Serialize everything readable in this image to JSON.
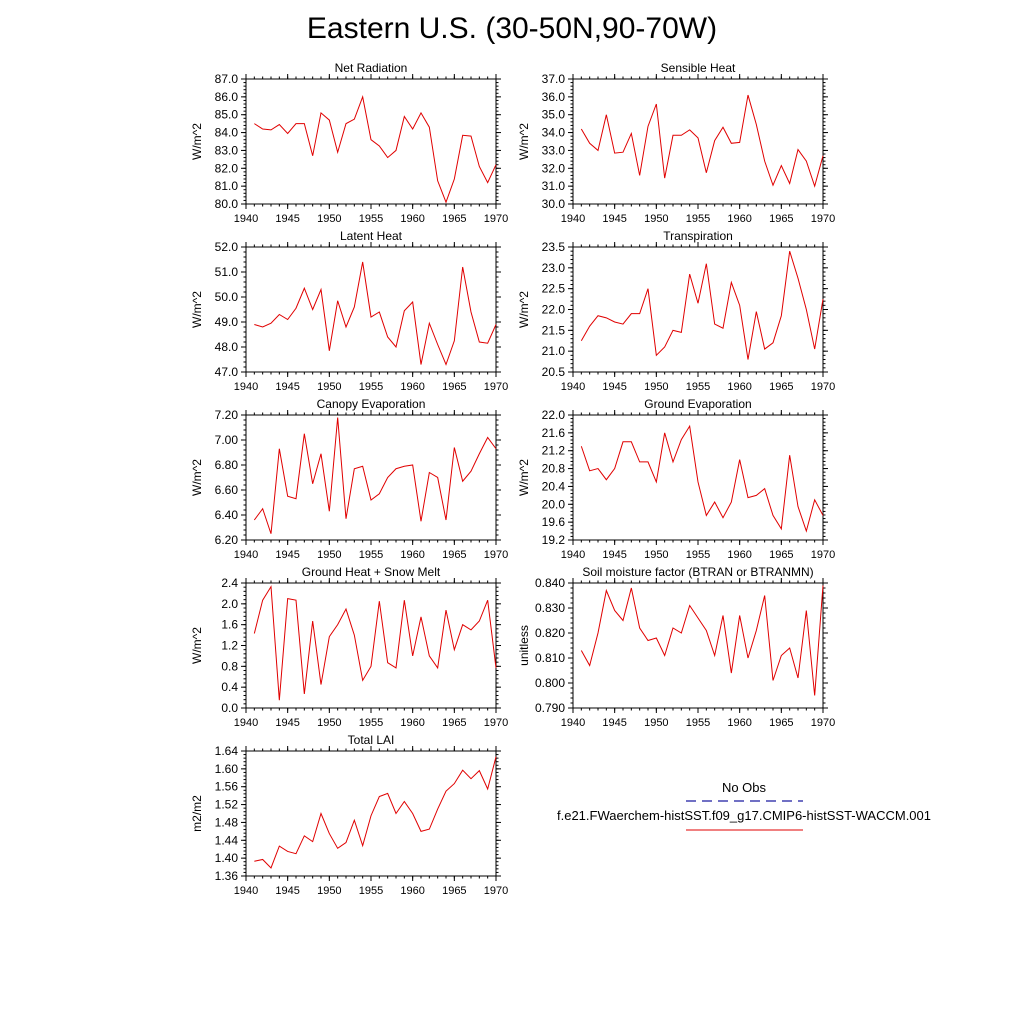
{
  "title": "Eastern U.S. (30-50N,90-70W)",
  "colors": {
    "model_line": "#e00000",
    "obs_line": "#1a1aa0",
    "axis": "#000000"
  },
  "legend": {
    "obs_label": "No Obs",
    "model_label": "f.e21.FWaerchem-histSST.f09_g17.CMIP6-histSST-WACCM.001"
  },
  "chart_data": [
    {
      "type": "line",
      "title": "Net Radiation",
      "ylabel": "W/m^2",
      "xlim": [
        1940,
        1970
      ],
      "ylim": [
        80.0,
        87.0
      ],
      "xticks": [
        1940,
        1945,
        1950,
        1955,
        1960,
        1965,
        1970
      ],
      "yticks": [
        "80.0",
        "81.0",
        "82.0",
        "83.0",
        "84.0",
        "85.0",
        "86.0",
        "87.0"
      ],
      "x": [
        1941,
        1942,
        1943,
        1944,
        1945,
        1946,
        1947,
        1948,
        1949,
        1950,
        1951,
        1952,
        1953,
        1954,
        1955,
        1956,
        1957,
        1958,
        1959,
        1960,
        1961,
        1962,
        1963,
        1964,
        1965,
        1966,
        1967,
        1968,
        1969,
        1970
      ],
      "y": [
        84.5,
        84.2,
        84.15,
        84.45,
        83.95,
        84.5,
        84.5,
        82.7,
        85.1,
        84.7,
        82.9,
        84.5,
        84.75,
        86.0,
        83.6,
        83.25,
        82.6,
        83.0,
        84.9,
        84.2,
        85.1,
        84.3,
        81.3,
        80.1,
        81.4,
        83.85,
        83.8,
        82.1,
        81.2,
        82.2
      ]
    },
    {
      "type": "line",
      "title": "Sensible Heat",
      "ylabel": "W/m^2",
      "xlim": [
        1940,
        1970
      ],
      "ylim": [
        30.0,
        37.0
      ],
      "xticks": [
        1940,
        1945,
        1950,
        1955,
        1960,
        1965,
        1970
      ],
      "yticks": [
        "30.0",
        "31.0",
        "32.0",
        "33.0",
        "34.0",
        "35.0",
        "36.0",
        "37.0"
      ],
      "x": [
        1941,
        1942,
        1943,
        1944,
        1945,
        1946,
        1947,
        1948,
        1949,
        1950,
        1951,
        1952,
        1953,
        1954,
        1955,
        1956,
        1957,
        1958,
        1959,
        1960,
        1961,
        1962,
        1963,
        1964,
        1965,
        1966,
        1967,
        1968,
        1969,
        1970
      ],
      "y": [
        34.2,
        33.4,
        33.0,
        35.0,
        32.85,
        32.9,
        33.95,
        31.6,
        34.35,
        35.6,
        31.45,
        33.85,
        33.85,
        34.15,
        33.7,
        31.75,
        33.55,
        34.3,
        33.4,
        33.45,
        36.1,
        34.45,
        32.4,
        31.05,
        32.15,
        31.15,
        33.05,
        32.4,
        31.0,
        32.7
      ]
    },
    {
      "type": "line",
      "title": "Latent Heat",
      "ylabel": "W/m^2",
      "xlim": [
        1940,
        1970
      ],
      "ylim": [
        47.0,
        52.0
      ],
      "xticks": [
        1940,
        1945,
        1950,
        1955,
        1960,
        1965,
        1970
      ],
      "yticks": [
        "47.0",
        "48.0",
        "49.0",
        "50.0",
        "51.0",
        "52.0"
      ],
      "x": [
        1941,
        1942,
        1943,
        1944,
        1945,
        1946,
        1947,
        1948,
        1949,
        1950,
        1951,
        1952,
        1953,
        1954,
        1955,
        1956,
        1957,
        1958,
        1959,
        1960,
        1961,
        1962,
        1963,
        1964,
        1965,
        1966,
        1967,
        1968,
        1969,
        1970
      ],
      "y": [
        48.9,
        48.8,
        48.95,
        49.3,
        49.1,
        49.55,
        50.35,
        49.5,
        50.3,
        47.85,
        49.85,
        48.8,
        49.6,
        51.4,
        49.2,
        49.4,
        48.4,
        48.0,
        49.45,
        49.8,
        47.3,
        48.95,
        48.1,
        47.3,
        48.25,
        51.2,
        49.4,
        48.2,
        48.15,
        48.9
      ]
    },
    {
      "type": "line",
      "title": "Transpiration",
      "ylabel": "W/m^2",
      "xlim": [
        1940,
        1970
      ],
      "ylim": [
        20.5,
        23.5
      ],
      "xticks": [
        1940,
        1945,
        1950,
        1955,
        1960,
        1965,
        1970
      ],
      "yticks": [
        "20.5",
        "21.0",
        "21.5",
        "22.0",
        "22.5",
        "23.0",
        "23.5"
      ],
      "x": [
        1941,
        1942,
        1943,
        1944,
        1945,
        1946,
        1947,
        1948,
        1949,
        1950,
        1951,
        1952,
        1953,
        1954,
        1955,
        1956,
        1957,
        1958,
        1959,
        1960,
        1961,
        1962,
        1963,
        1964,
        1965,
        1966,
        1967,
        1968,
        1969,
        1970
      ],
      "y": [
        21.25,
        21.6,
        21.85,
        21.8,
        21.7,
        21.65,
        21.9,
        21.9,
        22.5,
        20.9,
        21.1,
        21.5,
        21.45,
        22.85,
        22.15,
        23.1,
        21.65,
        21.55,
        22.65,
        22.1,
        20.8,
        21.95,
        21.05,
        21.2,
        21.85,
        23.4,
        22.75,
        22.0,
        21.05,
        22.25
      ]
    },
    {
      "type": "line",
      "title": "Canopy Evaporation",
      "ylabel": "W/m^2",
      "xlim": [
        1940,
        1970
      ],
      "ylim": [
        6.2,
        7.2
      ],
      "xticks": [
        1940,
        1945,
        1950,
        1955,
        1960,
        1965,
        1970
      ],
      "yticks": [
        "6.20",
        "6.40",
        "6.60",
        "6.80",
        "7.00",
        "7.20"
      ],
      "x": [
        1941,
        1942,
        1943,
        1944,
        1945,
        1946,
        1947,
        1948,
        1949,
        1950,
        1951,
        1952,
        1953,
        1954,
        1955,
        1956,
        1957,
        1958,
        1959,
        1960,
        1961,
        1962,
        1963,
        1964,
        1965,
        1966,
        1967,
        1968,
        1969,
        1970
      ],
      "y": [
        6.36,
        6.45,
        6.25,
        6.93,
        6.55,
        6.53,
        7.05,
        6.65,
        6.89,
        6.43,
        7.18,
        6.37,
        6.77,
        6.79,
        6.52,
        6.57,
        6.7,
        6.77,
        6.79,
        6.8,
        6.35,
        6.74,
        6.7,
        6.36,
        6.94,
        6.67,
        6.75,
        6.89,
        7.02,
        6.93
      ]
    },
    {
      "type": "line",
      "title": "Ground Evaporation",
      "ylabel": "W/m^2",
      "xlim": [
        1940,
        1970
      ],
      "ylim": [
        19.2,
        22.0
      ],
      "xticks": [
        1940,
        1945,
        1950,
        1955,
        1960,
        1965,
        1970
      ],
      "yticks": [
        "19.2",
        "19.6",
        "20.0",
        "20.4",
        "20.8",
        "21.2",
        "21.6",
        "22.0"
      ],
      "x": [
        1941,
        1942,
        1943,
        1944,
        1945,
        1946,
        1947,
        1948,
        1949,
        1950,
        1951,
        1952,
        1953,
        1954,
        1955,
        1956,
        1957,
        1958,
        1959,
        1960,
        1961,
        1962,
        1963,
        1964,
        1965,
        1966,
        1967,
        1968,
        1969,
        1970
      ],
      "y": [
        21.3,
        20.75,
        20.8,
        20.55,
        20.8,
        21.4,
        21.4,
        20.95,
        20.95,
        20.5,
        21.6,
        20.95,
        21.45,
        21.75,
        20.5,
        19.75,
        20.05,
        19.7,
        20.05,
        21.0,
        20.15,
        20.2,
        20.35,
        19.75,
        19.45,
        21.1,
        19.95,
        19.4,
        20.1,
        19.75
      ]
    },
    {
      "type": "line",
      "title": "Ground Heat + Snow Melt",
      "ylabel": "W/m^2",
      "xlim": [
        1940,
        1970
      ],
      "ylim": [
        0.0,
        2.4
      ],
      "xticks": [
        1940,
        1945,
        1950,
        1955,
        1960,
        1965,
        1970
      ],
      "yticks": [
        "0.0",
        "0.4",
        "0.8",
        "1.2",
        "1.6",
        "2.0",
        "2.4"
      ],
      "x": [
        1941,
        1942,
        1943,
        1944,
        1945,
        1946,
        1947,
        1948,
        1949,
        1950,
        1951,
        1952,
        1953,
        1954,
        1955,
        1956,
        1957,
        1958,
        1959,
        1960,
        1961,
        1962,
        1963,
        1964,
        1965,
        1966,
        1967,
        1968,
        1969,
        1970
      ],
      "y": [
        1.43,
        2.07,
        2.33,
        0.15,
        2.1,
        2.07,
        0.27,
        1.67,
        0.45,
        1.37,
        1.6,
        1.9,
        1.4,
        0.53,
        0.8,
        2.05,
        0.87,
        0.77,
        2.07,
        1.0,
        1.75,
        1.0,
        0.77,
        1.88,
        1.12,
        1.6,
        1.5,
        1.67,
        2.07,
        0.77
      ]
    },
    {
      "type": "line",
      "title": "Soil moisture factor (BTRAN or BTRANMN)",
      "ylabel": "unitless",
      "xlim": [
        1940,
        1970
      ],
      "ylim": [
        0.79,
        0.84
      ],
      "xticks": [
        1940,
        1945,
        1950,
        1955,
        1960,
        1965,
        1970
      ],
      "yticks": [
        "0.790",
        "0.800",
        "0.810",
        "0.820",
        "0.830",
        "0.840"
      ],
      "x": [
        1941,
        1942,
        1943,
        1944,
        1945,
        1946,
        1947,
        1948,
        1949,
        1950,
        1951,
        1952,
        1953,
        1954,
        1955,
        1956,
        1957,
        1958,
        1959,
        1960,
        1961,
        1962,
        1963,
        1964,
        1965,
        1966,
        1967,
        1968,
        1969,
        1970
      ],
      "y": [
        0.813,
        0.807,
        0.82,
        0.837,
        0.829,
        0.825,
        0.838,
        0.822,
        0.817,
        0.818,
        0.811,
        0.822,
        0.82,
        0.831,
        0.826,
        0.821,
        0.811,
        0.827,
        0.804,
        0.827,
        0.81,
        0.821,
        0.835,
        0.801,
        0.811,
        0.814,
        0.802,
        0.829,
        0.795,
        0.839
      ]
    },
    {
      "type": "line",
      "title": "Total LAI",
      "ylabel": "m2/m2",
      "xlim": [
        1940,
        1970
      ],
      "ylim": [
        1.36,
        1.64
      ],
      "xticks": [
        1940,
        1945,
        1950,
        1955,
        1960,
        1965,
        1970
      ],
      "yticks": [
        "1.36",
        "1.40",
        "1.44",
        "1.48",
        "1.52",
        "1.56",
        "1.60",
        "1.64"
      ],
      "x": [
        1941,
        1942,
        1943,
        1944,
        1945,
        1946,
        1947,
        1948,
        1949,
        1950,
        1951,
        1952,
        1953,
        1954,
        1955,
        1956,
        1957,
        1958,
        1959,
        1960,
        1961,
        1962,
        1963,
        1964,
        1965,
        1966,
        1967,
        1968,
        1969,
        1970
      ],
      "y": [
        1.393,
        1.397,
        1.378,
        1.427,
        1.415,
        1.41,
        1.45,
        1.437,
        1.5,
        1.455,
        1.422,
        1.435,
        1.485,
        1.428,
        1.495,
        1.538,
        1.545,
        1.5,
        1.527,
        1.5,
        1.46,
        1.465,
        1.51,
        1.55,
        1.567,
        1.597,
        1.578,
        1.596,
        1.555,
        1.627
      ]
    }
  ]
}
